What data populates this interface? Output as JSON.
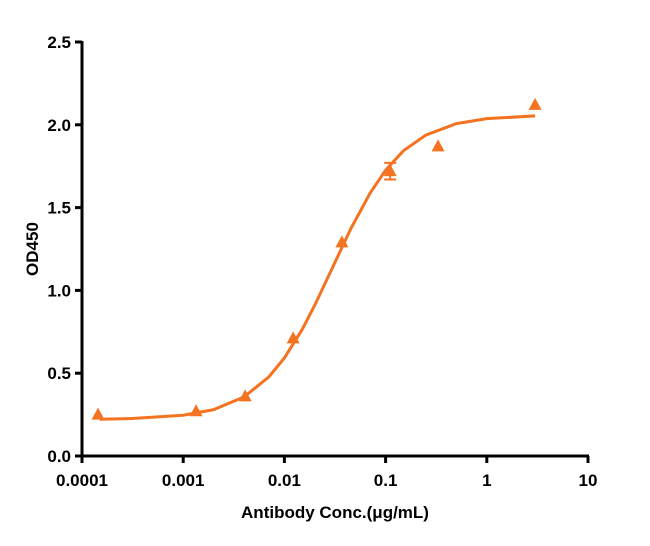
{
  "chart_data": {
    "type": "scatter",
    "x_label": "Antibody Conc.(μg/mL)",
    "y_label": "OD450",
    "log_x": true,
    "color": "#f47321",
    "xlim": [
      0.0001,
      10
    ],
    "xticks": [
      0.0001,
      0.001,
      0.01,
      0.1,
      1,
      10
    ],
    "ylim": [
      0,
      2.5
    ],
    "yticks": [
      {
        "value": 0,
        "label": "0.0"
      },
      0.5,
      {
        "value": 1,
        "label": "1.0"
      },
      1.5,
      {
        "value": 2,
        "label": "2.0"
      },
      2.5
    ],
    "series": [
      {
        "x": [
          0.000144,
          0.00134,
          0.0041,
          0.0122,
          0.037,
          0.111,
          0.33,
          3.0
        ],
        "values": [
          0.25,
          0.27,
          0.36,
          0.71,
          1.29,
          1.72,
          1.87,
          2.12
        ],
        "errors": [
          null,
          null,
          null,
          null,
          null,
          0.05,
          null,
          null
        ]
      },
      {
        "x": [
          0.00015,
          0.0003,
          0.001,
          0.002,
          0.004,
          0.007,
          0.01,
          0.015,
          0.02,
          0.03,
          0.045,
          0.07,
          0.1,
          0.15,
          0.25,
          0.5,
          1,
          3
        ],
        "values": [
          0.222,
          0.226,
          0.246,
          0.28,
          0.357,
          0.477,
          0.592,
          0.764,
          0.912,
          1.14,
          1.369,
          1.586,
          1.726,
          1.843,
          1.938,
          2.007,
          2.037,
          2.054
        ]
      }
    ]
  }
}
